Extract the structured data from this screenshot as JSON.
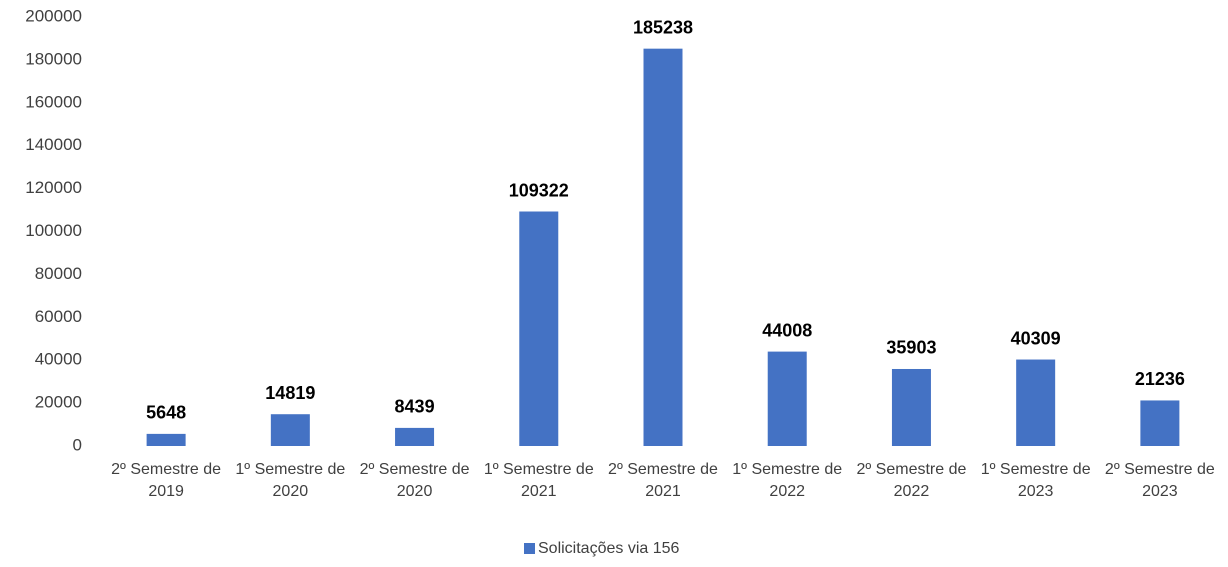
{
  "chart_data": {
    "type": "bar",
    "categories": [
      "2º Semestre de 2019",
      "1º Semestre de 2020",
      "2º Semestre de 2020",
      "1º Semestre de 2021",
      "2º Semestre de 2021",
      "1º Semestre de 2022",
      "2º Semestre de 2022",
      "1º Semestre de 2023",
      "2º Semestre de 2023"
    ],
    "series": [
      {
        "name": "Solicitações via 156",
        "color": "#4472c4",
        "values": [
          5648,
          14819,
          8439,
          109322,
          185238,
          44008,
          35903,
          40309,
          21236
        ]
      }
    ],
    "ylim": [
      0,
      200000
    ],
    "yticks": [
      0,
      20000,
      40000,
      60000,
      80000,
      100000,
      120000,
      140000,
      160000,
      180000,
      200000
    ],
    "grid": false,
    "legend": "bottom"
  }
}
